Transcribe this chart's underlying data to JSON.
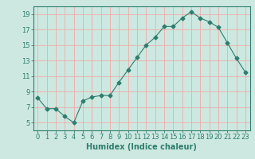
{
  "x": [
    0,
    1,
    2,
    3,
    4,
    5,
    6,
    7,
    8,
    9,
    10,
    11,
    12,
    13,
    14,
    15,
    16,
    17,
    18,
    19,
    20,
    21,
    22,
    23
  ],
  "y": [
    8.2,
    6.8,
    6.8,
    5.8,
    5.0,
    7.8,
    8.3,
    8.5,
    8.5,
    10.2,
    11.8,
    13.4,
    15.0,
    16.0,
    17.4,
    17.4,
    18.5,
    19.3,
    18.5,
    18.0,
    17.3,
    15.3,
    13.3,
    11.5
  ],
  "line_color": "#2e7d6e",
  "marker": "D",
  "markersize": 2.5,
  "bg_color": "#cce8e0",
  "grid_color": "#f0aaaa",
  "axis_color": "#2e7d6e",
  "xlabel": "Humidex (Indice chaleur)",
  "ylim": [
    4,
    20
  ],
  "xlim": [
    -0.5,
    23.5
  ],
  "yticks": [
    5,
    7,
    9,
    11,
    13,
    15,
    17,
    19
  ],
  "xticks": [
    0,
    1,
    2,
    3,
    4,
    5,
    6,
    7,
    8,
    9,
    10,
    11,
    12,
    13,
    14,
    15,
    16,
    17,
    18,
    19,
    20,
    21,
    22,
    23
  ],
  "tick_fontsize": 6,
  "label_fontsize": 7
}
